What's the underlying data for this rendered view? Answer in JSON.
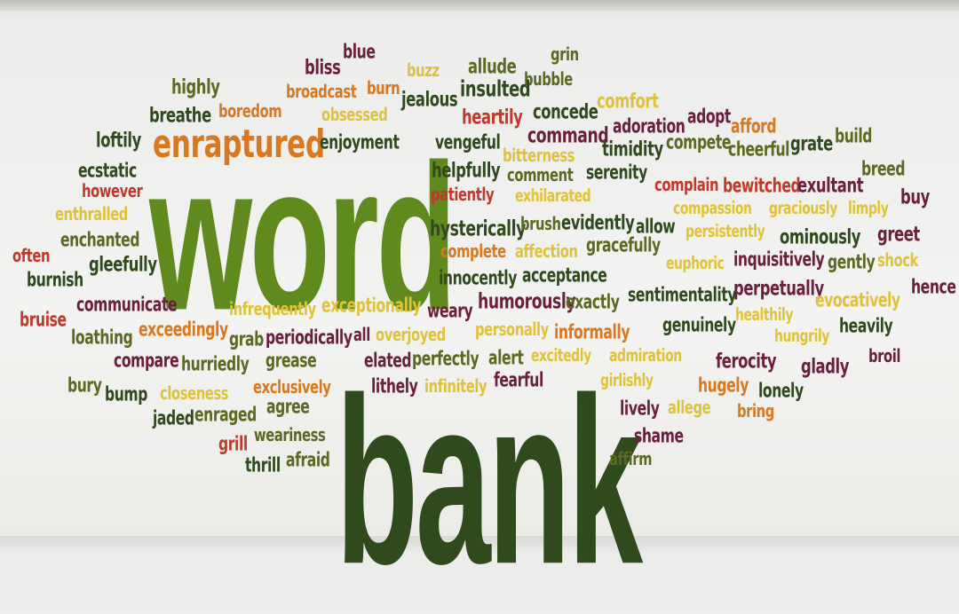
{
  "words": [
    {
      "text": "word",
      "color": "green"
    },
    {
      "text": "bank",
      "color": "darkgreen"
    },
    {
      "text": "enraptured",
      "color": "orange"
    },
    {
      "text": "blue",
      "color": "maroon"
    },
    {
      "text": "bliss",
      "color": "maroon"
    },
    {
      "text": "buzz",
      "color": "yellow"
    },
    {
      "text": "allude",
      "color": "olive"
    },
    {
      "text": "grin",
      "color": "olive"
    },
    {
      "text": "bubble",
      "color": "olive"
    },
    {
      "text": "highly",
      "color": "olive"
    },
    {
      "text": "broadcast",
      "color": "orange"
    },
    {
      "text": "burn",
      "color": "orange"
    },
    {
      "text": "jealous",
      "color": "darkgreen"
    },
    {
      "text": "insulted",
      "color": "darkgreen"
    },
    {
      "text": "comfort",
      "color": "yellow"
    },
    {
      "text": "breathe",
      "color": "darkgreen"
    },
    {
      "text": "boredom",
      "color": "orange"
    },
    {
      "text": "obsessed",
      "color": "yellow"
    },
    {
      "text": "heartily",
      "color": "red"
    },
    {
      "text": "concede",
      "color": "darkgreen"
    },
    {
      "text": "adoration",
      "color": "maroon"
    },
    {
      "text": "adopt",
      "color": "maroon"
    },
    {
      "text": "afford",
      "color": "orange"
    },
    {
      "text": "loftily",
      "color": "darkgreen"
    },
    {
      "text": "enjoyment",
      "color": "darkgreen"
    },
    {
      "text": "vengeful",
      "color": "darkgreen"
    },
    {
      "text": "command",
      "color": "maroon"
    },
    {
      "text": "timidity",
      "color": "darkgreen"
    },
    {
      "text": "compete",
      "color": "olive"
    },
    {
      "text": "cheerful",
      "color": "olive"
    },
    {
      "text": "grate",
      "color": "darkgreen"
    },
    {
      "text": "build",
      "color": "olive"
    },
    {
      "text": "ecstatic",
      "color": "darkgreen"
    },
    {
      "text": "helpfully",
      "color": "darkgreen"
    },
    {
      "text": "bitterness",
      "color": "yellow"
    },
    {
      "text": "comment",
      "color": "olive"
    },
    {
      "text": "serenity",
      "color": "darkgreen"
    },
    {
      "text": "breed",
      "color": "olive"
    },
    {
      "text": "however",
      "color": "red"
    },
    {
      "text": "patiently",
      "color": "red"
    },
    {
      "text": "exhilarated",
      "color": "yellow"
    },
    {
      "text": "complain",
      "color": "red"
    },
    {
      "text": "bewitched",
      "color": "red"
    },
    {
      "text": "exultant",
      "color": "maroon"
    },
    {
      "text": "buy",
      "color": "maroon"
    },
    {
      "text": "enthralled",
      "color": "yellow"
    },
    {
      "text": "compassion",
      "color": "yellow"
    },
    {
      "text": "graciously",
      "color": "yellow"
    },
    {
      "text": "limply",
      "color": "yellow"
    },
    {
      "text": "hysterically",
      "color": "darkgreen"
    },
    {
      "text": "brush",
      "color": "olive"
    },
    {
      "text": "evidently",
      "color": "darkgreen"
    },
    {
      "text": "allow",
      "color": "darkgreen"
    },
    {
      "text": "enchanted",
      "color": "olive"
    },
    {
      "text": "persistently",
      "color": "yellow"
    },
    {
      "text": "ominously",
      "color": "darkgreen"
    },
    {
      "text": "greet",
      "color": "maroon"
    },
    {
      "text": "complete",
      "color": "orange"
    },
    {
      "text": "affection",
      "color": "yellow"
    },
    {
      "text": "gracefully",
      "color": "olive"
    },
    {
      "text": "often",
      "color": "red"
    },
    {
      "text": "gleefully",
      "color": "darkgreen"
    },
    {
      "text": "euphoric",
      "color": "yellow"
    },
    {
      "text": "inquisitively",
      "color": "maroon"
    },
    {
      "text": "gently",
      "color": "olive"
    },
    {
      "text": "shock",
      "color": "yellow"
    },
    {
      "text": "burnish",
      "color": "darkgreen"
    },
    {
      "text": "innocently",
      "color": "darkgreen"
    },
    {
      "text": "acceptance",
      "color": "darkgreen"
    },
    {
      "text": "perpetually",
      "color": "maroon"
    },
    {
      "text": "hence",
      "color": "maroon"
    },
    {
      "text": "communicate",
      "color": "maroon"
    },
    {
      "text": "infrequently",
      "color": "yellow"
    },
    {
      "text": "exceptionally",
      "color": "yellow"
    },
    {
      "text": "weary",
      "color": "maroon"
    },
    {
      "text": "humorously",
      "color": "maroon"
    },
    {
      "text": "exactly",
      "color": "olive"
    },
    {
      "text": "sentimentality",
      "color": "darkgreen"
    },
    {
      "text": "evocatively",
      "color": "yellow"
    },
    {
      "text": "bruise",
      "color": "red"
    },
    {
      "text": "healthily",
      "color": "yellow"
    },
    {
      "text": "exceedingly",
      "color": "orange"
    },
    {
      "text": "personally",
      "color": "yellow"
    },
    {
      "text": "informally",
      "color": "orange"
    },
    {
      "text": "genuinely",
      "color": "darkgreen"
    },
    {
      "text": "loathing",
      "color": "olive"
    },
    {
      "text": "grab",
      "color": "olive"
    },
    {
      "text": "periodically",
      "color": "maroon"
    },
    {
      "text": "all",
      "color": "maroon"
    },
    {
      "text": "overjoyed",
      "color": "yellow"
    },
    {
      "text": "hungrily",
      "color": "yellow"
    },
    {
      "text": "heavily",
      "color": "darkgreen"
    },
    {
      "text": "compare",
      "color": "maroon"
    },
    {
      "text": "hurriedly",
      "color": "olive"
    },
    {
      "text": "grease",
      "color": "olive"
    },
    {
      "text": "elated",
      "color": "maroon"
    },
    {
      "text": "perfectly",
      "color": "olive"
    },
    {
      "text": "alert",
      "color": "olive"
    },
    {
      "text": "excitedly",
      "color": "yellow"
    },
    {
      "text": "admiration",
      "color": "yellow"
    },
    {
      "text": "ferocity",
      "color": "maroon"
    },
    {
      "text": "gladly",
      "color": "maroon"
    },
    {
      "text": "broil",
      "color": "maroon"
    },
    {
      "text": "bury",
      "color": "olive"
    },
    {
      "text": "bump",
      "color": "darkgreen"
    },
    {
      "text": "closeness",
      "color": "yellow"
    },
    {
      "text": "exclusively",
      "color": "orange"
    },
    {
      "text": "lithely",
      "color": "maroon"
    },
    {
      "text": "infinitely",
      "color": "yellow"
    },
    {
      "text": "fearful",
      "color": "maroon"
    },
    {
      "text": "girlishly",
      "color": "yellow"
    },
    {
      "text": "hugely",
      "color": "orange"
    },
    {
      "text": "lonely",
      "color": "darkgreen"
    },
    {
      "text": "jaded",
      "color": "darkgreen"
    },
    {
      "text": "enraged",
      "color": "olive"
    },
    {
      "text": "agree",
      "color": "olive"
    },
    {
      "text": "lively",
      "color": "maroon"
    },
    {
      "text": "allege",
      "color": "yellow"
    },
    {
      "text": "bring",
      "color": "orange"
    },
    {
      "text": "grill",
      "color": "red"
    },
    {
      "text": "weariness",
      "color": "olive"
    },
    {
      "text": "shame",
      "color": "maroon"
    },
    {
      "text": "thrill",
      "color": "darkgreen"
    },
    {
      "text": "afraid",
      "color": "olive"
    },
    {
      "text": "affirm",
      "color": "olive"
    }
  ],
  "colors": {
    "green": "#5e8a1e",
    "darkgreen": "#2f4a1c",
    "olive": "#5b6a22",
    "orange": "#d9781e",
    "yellow": "#e0c23a",
    "red": "#c0392b",
    "maroon": "#6b1f3f"
  }
}
